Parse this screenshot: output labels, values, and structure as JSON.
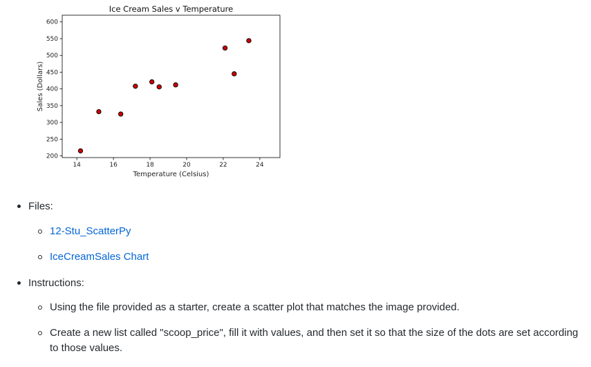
{
  "chart_data": {
    "type": "scatter",
    "title": "Ice Cream Sales v Temperature",
    "xlabel": "Temperature (Celsius)",
    "ylabel": "Sales (Dollars)",
    "xlim": [
      13.2,
      25.1
    ],
    "ylim": [
      195,
      620
    ],
    "xticks": [
      14,
      16,
      18,
      20,
      22,
      24
    ],
    "yticks": [
      200,
      250,
      300,
      350,
      400,
      450,
      500,
      550,
      600
    ],
    "grid": false,
    "points": [
      {
        "x": 14.2,
        "y": 215
      },
      {
        "x": 15.2,
        "y": 332
      },
      {
        "x": 16.4,
        "y": 325
      },
      {
        "x": 17.2,
        "y": 408
      },
      {
        "x": 18.1,
        "y": 421
      },
      {
        "x": 18.5,
        "y": 406
      },
      {
        "x": 19.4,
        "y": 412
      },
      {
        "x": 22.1,
        "y": 522
      },
      {
        "x": 22.6,
        "y": 445
      },
      {
        "x": 23.4,
        "y": 544
      }
    ],
    "marker_color": "#cc0000",
    "marker_edge_color": "#000000"
  },
  "doc": {
    "files_label": "Files:",
    "files": [
      {
        "label": "12-Stu_ScatterPy"
      },
      {
        "label": "IceCreamSales Chart"
      }
    ],
    "instructions_label": "Instructions:",
    "instructions": [
      {
        "text": "Using the file provided as a starter, create a scatter plot that matches the image provided."
      },
      {
        "text_line1": "Create a new list called \"scoop_price\", fill it with values, and then set it so that the size of the dots are set according",
        "text_line2": "to those values."
      }
    ],
    "link_color": "#0366d6"
  }
}
